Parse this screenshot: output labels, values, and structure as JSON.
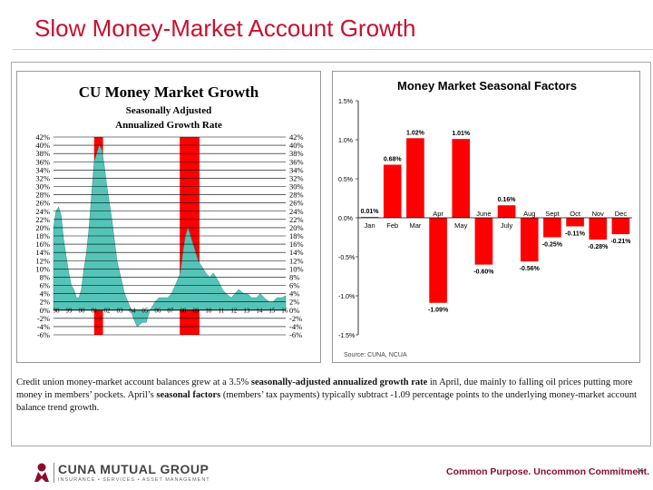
{
  "slide": {
    "title": "Slow Money-Market Account Growth",
    "caption_parts": [
      {
        "text": "Credit union money-market account balances grew at a 3.5% ",
        "bold": false
      },
      {
        "text": "seasonally-adjusted annualized growth rate",
        "bold": true
      },
      {
        "text": " in April, due mainly to falling oil prices putting more money in members’ pockets. April’s ",
        "bold": false
      },
      {
        "text": "seasonal factors",
        "bold": true
      },
      {
        "text": " (members’ tax payments) typically subtract -1.09 percentage points to the underlying money-market account balance trend growth.",
        "bold": false
      }
    ],
    "footer": {
      "company": "CUNA MUTUAL GROUP",
      "company_sub": "INSURANCE • SERVICES • ASSET MANAGEMENT",
      "tagline": "Common Purpose. Uncommon Commitment.",
      "page_number": "36"
    }
  },
  "chart_data": [
    {
      "type": "area",
      "title": "CU Money Market Growth",
      "subtitle_lines": [
        "Seasonally Adjusted",
        "Annualized Growth Rate"
      ],
      "x_tick_labels": [
        "98",
        "99",
        "00",
        "01",
        "02",
        "03",
        "04",
        "05",
        "06",
        "07",
        "08",
        "09",
        "10",
        "11",
        "12",
        "13",
        "14",
        "15",
        "16"
      ],
      "y_tick_labels": [
        "42%",
        "40%",
        "38%",
        "36%",
        "34%",
        "32%",
        "30%",
        "28%",
        "26%",
        "24%",
        "22%",
        "20%",
        "18%",
        "16%",
        "14%",
        "12%",
        "10%",
        "8%",
        "6%",
        "4%",
        "2%",
        "0%",
        "-2%",
        "-4%",
        "-6%"
      ],
      "ylim": [
        -6,
        42
      ],
      "xlim": [
        1998,
        2016.3
      ],
      "grid": true,
      "colors": {
        "area": "#54c4b8",
        "recession": "#ff0000",
        "grid": "#000000"
      },
      "recession_bands": [
        [
          2001.2,
          2001.9
        ],
        [
          2007.95,
          2009.5
        ]
      ],
      "series": [
        {
          "x": [
            1998.0,
            1998.2,
            1998.4,
            1998.6,
            1998.8,
            1999.0,
            1999.2,
            1999.4,
            1999.6,
            1999.8,
            2000.0,
            2000.2,
            2000.4,
            2000.6,
            2000.8,
            2001.0,
            2001.2,
            2001.4,
            2001.6,
            2001.8,
            2002.0,
            2002.2,
            2002.4,
            2002.6,
            2002.8,
            2003.0,
            2003.3,
            2003.6,
            2004.0,
            2004.3,
            2004.6,
            2005.0,
            2005.3,
            2005.6,
            2006.0,
            2006.3,
            2006.6,
            2007.0,
            2007.3,
            2007.6,
            2008.0,
            2008.2,
            2008.4,
            2008.6,
            2008.8,
            2009.0,
            2009.2,
            2009.4,
            2009.6,
            2009.8,
            2010.0,
            2010.3,
            2010.6,
            2011.0,
            2011.3,
            2011.6,
            2012.0,
            2012.3,
            2012.6,
            2013.0,
            2013.3,
            2013.6,
            2014.0,
            2014.3,
            2014.6,
            2015.0,
            2015.3,
            2015.6,
            2016.0,
            2016.3
          ],
          "y": [
            20,
            24,
            25,
            23,
            17,
            13,
            9,
            6,
            5,
            3,
            3,
            5,
            10,
            14,
            20,
            28,
            36,
            38,
            40,
            39,
            35,
            30,
            26,
            22,
            17,
            12,
            8,
            4,
            1,
            -2,
            -4,
            -3,
            -3,
            0,
            2,
            3,
            3,
            3,
            4,
            6,
            9,
            14,
            18,
            20,
            18,
            16,
            14,
            12,
            11,
            10,
            9,
            8,
            9,
            7,
            5,
            4,
            3,
            4,
            5,
            4,
            4,
            3,
            3,
            4,
            3,
            2,
            2,
            3,
            3,
            3.5
          ]
        }
      ]
    },
    {
      "type": "bar",
      "title": "Money Market Seasonal Factors",
      "categories": [
        "Jan",
        "Feb",
        "Mar",
        "Apr",
        "May",
        "June",
        "July",
        "Aug",
        "Sept",
        "Oct",
        "Nov",
        "Dec"
      ],
      "values": [
        0.01,
        0.68,
        1.02,
        -1.09,
        1.01,
        -0.6,
        0.16,
        -0.56,
        -0.25,
        -0.11,
        -0.28,
        -0.21
      ],
      "value_labels": [
        "0.01%",
        "0.68%",
        "1.02%",
        "-1.09%",
        "1.01%",
        "-0.60%",
        "0.16%",
        "-0.56%",
        "-0.25%",
        "-0.11%",
        "-0.28%",
        "-0.21%"
      ],
      "y_tick_labels": [
        "1.5%",
        "1.0%",
        "0.5%",
        "0.0%",
        "-0.5%",
        "-1.0%",
        "-1.5%"
      ],
      "ylim": [
        -1.5,
        1.5
      ],
      "source": "Source: CUNA, NCUA",
      "colors": {
        "bar": "#ff0000"
      }
    }
  ]
}
